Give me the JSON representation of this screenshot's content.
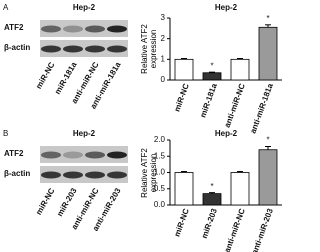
{
  "panels": [
    {
      "label": "A",
      "blot": {
        "title": "Hep-2",
        "rows": [
          "ATF2",
          "β-actin"
        ],
        "lanes": [
          "miR-NC",
          "miR-181a",
          "anti-miR-NC",
          "anti-miR-181a"
        ]
      }
    },
    {
      "label": "B",
      "blot": {
        "title": "Hep-2",
        "rows": [
          "ATF2",
          "β-actin"
        ],
        "lanes": [
          "miR-NC",
          "miR-203",
          "anti-miR-NC",
          "anti-miR-203"
        ]
      }
    }
  ],
  "chart_data": [
    {
      "type": "bar",
      "title": "Hep-2",
      "ylabel": "Relative ATF2 expression",
      "categories": [
        "miR-NC",
        "miR-181a",
        "anti-miR-NC",
        "anti-miR-181a"
      ],
      "values": [
        1.0,
        0.35,
        1.0,
        2.55
      ],
      "errors": [
        0.04,
        0.03,
        0.04,
        0.12
      ],
      "colors": [
        "#ffffff",
        "#333333",
        "#ffffff",
        "#9a9a9a"
      ],
      "annotations": [
        {
          "category": "miR-181a",
          "text": "*"
        },
        {
          "category": "anti-miR-181a",
          "text": "*"
        }
      ],
      "ylim": [
        0,
        3
      ],
      "yticks": [
        0,
        1,
        2,
        3
      ]
    },
    {
      "type": "bar",
      "title": "Hep-2",
      "ylabel": "Relative ATF2 expression",
      "categories": [
        "miR-NC",
        "miR-203",
        "anti-miR-NC",
        "anti-miR-203"
      ],
      "values": [
        1.0,
        0.35,
        1.0,
        1.7
      ],
      "errors": [
        0.03,
        0.03,
        0.03,
        0.1
      ],
      "colors": [
        "#ffffff",
        "#333333",
        "#ffffff",
        "#9a9a9a"
      ],
      "annotations": [
        {
          "category": "miR-203",
          "text": "*"
        },
        {
          "category": "anti-miR-203",
          "text": "*"
        }
      ],
      "ylim": [
        0,
        2
      ],
      "yticks": [
        {
          "value": 0,
          "label": "0.0"
        },
        {
          "value": 0.5,
          "label": "0.5"
        },
        {
          "value": 1,
          "label": "1.0"
        },
        {
          "value": 1.5,
          "label": "1.5"
        },
        {
          "value": 2,
          "label": "2.0"
        }
      ]
    }
  ]
}
